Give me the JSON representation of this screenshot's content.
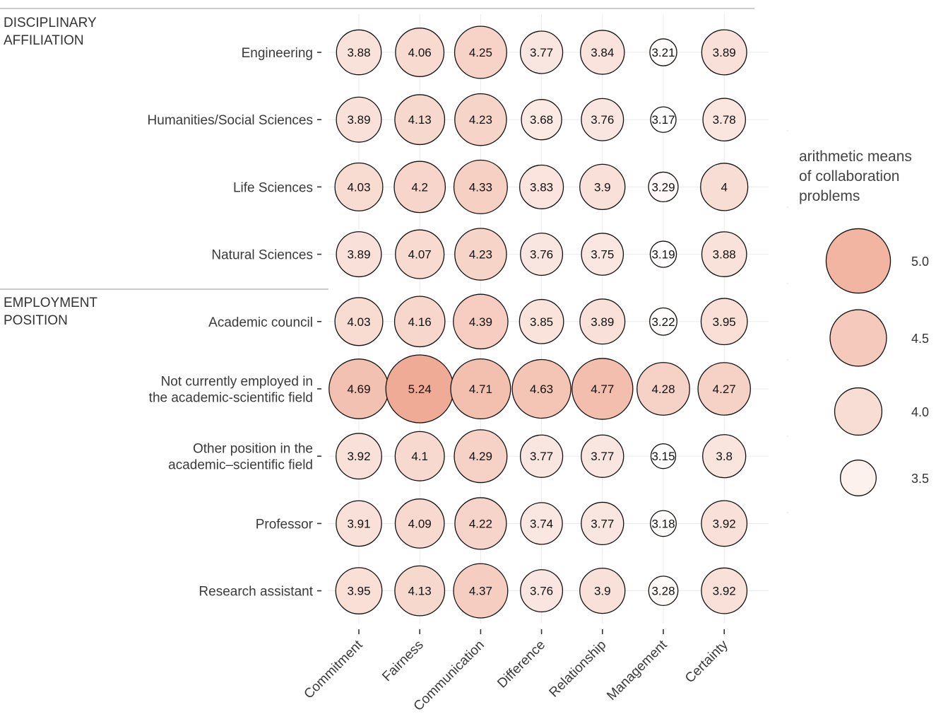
{
  "chart_data": {
    "type": "bubble-matrix",
    "title": "",
    "xlabel": "",
    "ylabel": "",
    "columns": [
      "Commitment",
      "Fairness",
      "Communication",
      "Difference",
      "Relationship",
      "Management",
      "Certainty"
    ],
    "groups": [
      {
        "name": "DISCIPLINARY\nAFFILIATION",
        "rows": [
          0,
          1,
          2,
          3
        ]
      },
      {
        "name": "EMPLOYMENT\nPOSITION",
        "rows": [
          4,
          5,
          6,
          7,
          8
        ]
      }
    ],
    "rows": [
      {
        "label": "Engineering",
        "values": [
          3.88,
          4.06,
          4.25,
          3.77,
          3.84,
          3.21,
          3.89
        ]
      },
      {
        "label": "Humanities/Social Sciences",
        "values": [
          3.89,
          4.13,
          4.23,
          3.68,
          3.76,
          3.17,
          3.78
        ]
      },
      {
        "label": "Life Sciences",
        "values": [
          4.03,
          4.2,
          4.33,
          3.83,
          3.9,
          3.29,
          4
        ]
      },
      {
        "label": "Natural Sciences",
        "values": [
          3.89,
          4.07,
          4.23,
          3.76,
          3.75,
          3.19,
          3.88
        ]
      },
      {
        "label": "Academic council",
        "values": [
          4.03,
          4.16,
          4.39,
          3.85,
          3.89,
          3.22,
          3.95
        ]
      },
      {
        "label": "Not currently employed in\nthe academic-scientific field",
        "values": [
          4.69,
          5.24,
          4.71,
          4.63,
          4.77,
          4.28,
          4.27
        ]
      },
      {
        "label": "Other position in the\nacademic–scientific field",
        "values": [
          3.92,
          4.1,
          4.29,
          3.77,
          3.77,
          3.15,
          3.8
        ]
      },
      {
        "label": "Professor",
        "values": [
          3.91,
          4.09,
          4.22,
          3.74,
          3.77,
          3.18,
          3.92
        ]
      },
      {
        "label": "Research assistant",
        "values": [
          3.95,
          4.13,
          4.37,
          3.76,
          3.9,
          3.28,
          3.92
        ]
      }
    ],
    "value_labels": [
      [
        "3.88",
        "4.06",
        "4.25",
        "3.77",
        "3.84",
        "3.21",
        "3.89"
      ],
      [
        "3.89",
        "4.13",
        "4.23",
        "3.68",
        "3.76",
        "3.17",
        "3.78"
      ],
      [
        "4.03",
        "4.2",
        "4.33",
        "3.83",
        "3.9",
        "3.29",
        "4"
      ],
      [
        "3.89",
        "4.07",
        "4.23",
        "3.76",
        "3.75",
        "3.19",
        "3.88"
      ],
      [
        "4.03",
        "4.16",
        "4.39",
        "3.85",
        "3.89",
        "3.22",
        "3.95"
      ],
      [
        "4.69",
        "5.24",
        "4.71",
        "4.63",
        "4.77",
        "4.28",
        "4.27"
      ],
      [
        "3.92",
        "4.1",
        "4.29",
        "3.77",
        "3.77",
        "3.15",
        "3.8"
      ],
      [
        "3.91",
        "4.09",
        "4.22",
        "3.74",
        "3.77",
        "3.18",
        "3.92"
      ],
      [
        "3.95",
        "4.13",
        "4.37",
        "3.76",
        "3.9",
        "3.28",
        "3.92"
      ]
    ],
    "legend": {
      "title": "arithmetic means\nof collaboration\nproblems",
      "placement": "right",
      "entries": [
        {
          "value": 5.0,
          "label": "5.0"
        },
        {
          "value": 4.5,
          "label": "4.5"
        },
        {
          "value": 4.0,
          "label": "4.0"
        },
        {
          "value": 3.5,
          "label": "3.5"
        }
      ]
    },
    "color_scale": {
      "low_value": 3.15,
      "high_value": 5.24,
      "low_color": "#ffffff",
      "high_color": "#efab95"
    },
    "size_scale": {
      "low_value": 3.15,
      "high_value": 5.24
    },
    "grid": true
  }
}
